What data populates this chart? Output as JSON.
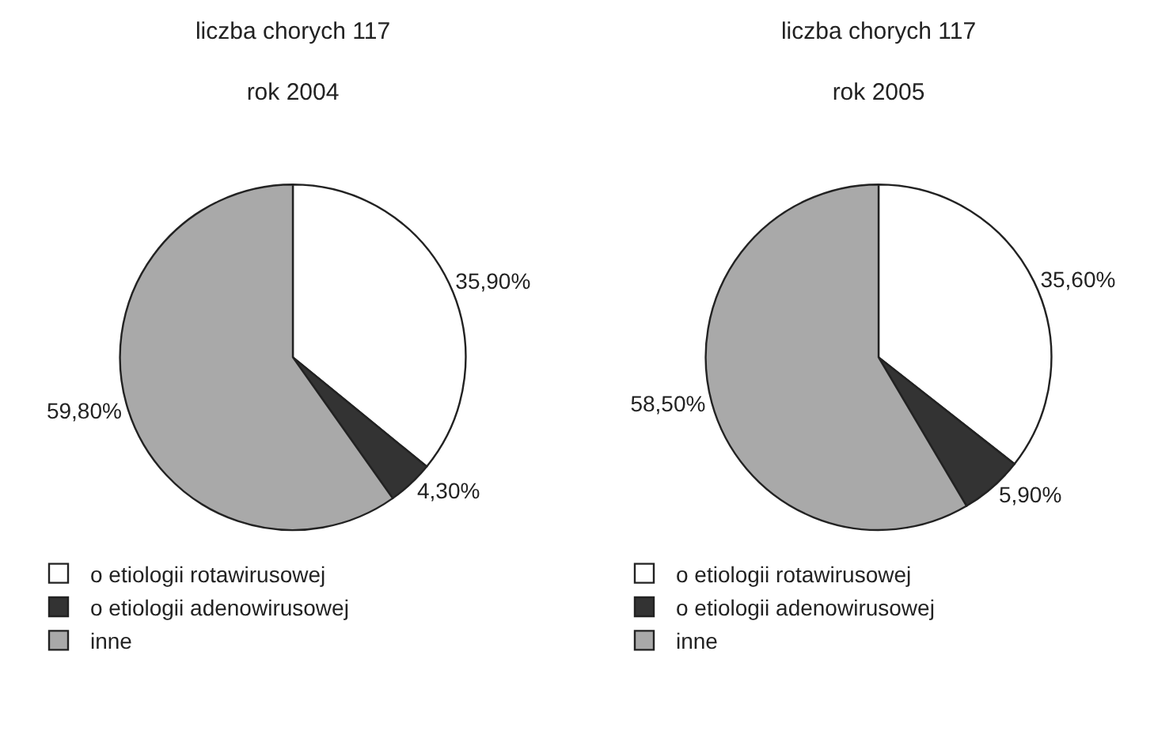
{
  "chart_data": [
    {
      "type": "pie",
      "title": "liczba chorych 117",
      "subtitle": "rok 2004",
      "categories": [
        "o etiologii rotawirusowej",
        "o etiologii adenowirusowej",
        "inne"
      ],
      "values": [
        35.9,
        4.3,
        59.8
      ],
      "colors": [
        "#ffffff",
        "#333333",
        "#a9a9a9"
      ],
      "value_labels": [
        "35,90%",
        "4,30%",
        "59,80%"
      ],
      "legend": "bottom left"
    },
    {
      "type": "pie",
      "title": "liczba chorych 117",
      "subtitle": "rok 2005",
      "categories": [
        "o etiologii rotawirusowej",
        "o etiologii adenowirusowej",
        "inne"
      ],
      "values": [
        35.6,
        5.9,
        58.5
      ],
      "colors": [
        "#ffffff",
        "#333333",
        "#a9a9a9"
      ],
      "value_labels": [
        "35,60%",
        "5,90%",
        "58,50%"
      ],
      "legend": "bottom left"
    }
  ]
}
